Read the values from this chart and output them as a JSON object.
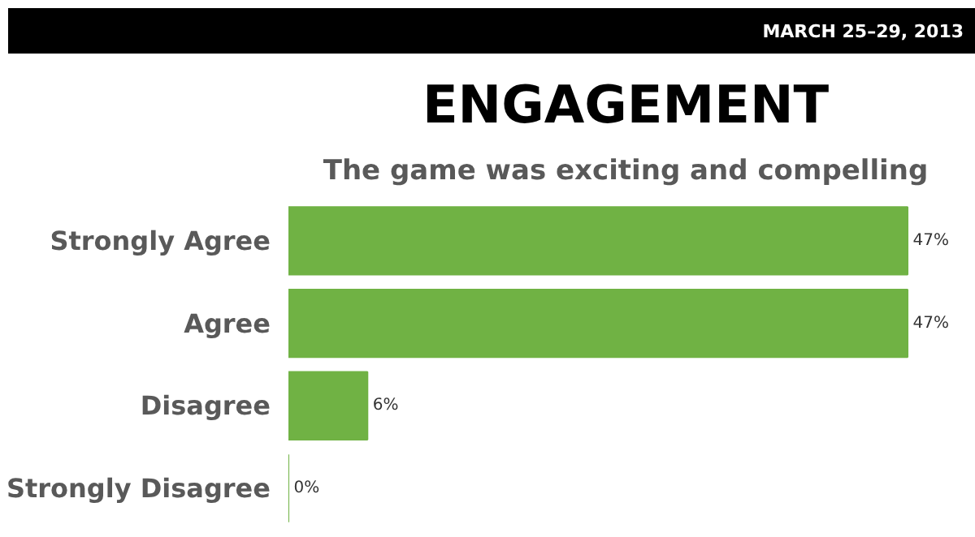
{
  "chart_data": {
    "type": "bar",
    "orientation": "horizontal",
    "title": "ENGAGEMENT",
    "subtitle": "The game was exciting and compelling",
    "categories": [
      "Strongly Agree",
      "Agree",
      "Disagree",
      "Strongly Disagree"
    ],
    "values": [
      47,
      47,
      6,
      0
    ],
    "color": "#70b244",
    "value_labels": [
      "47%",
      "47%",
      "6%",
      "0%"
    ],
    "grid": false,
    "tick_labels": "y",
    "annotations": [
      "MARCH 25–29, 2013"
    ]
  }
}
